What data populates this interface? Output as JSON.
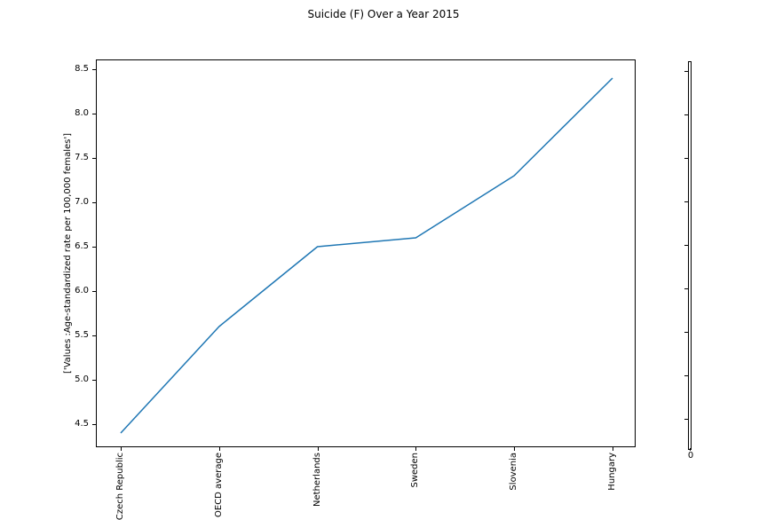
{
  "chart_data": {
    "type": "line",
    "title": "Suicide (F) Over a Year 2015",
    "categories": [
      "Czech Republic",
      "OECD average",
      "Netherlands",
      "Sweden",
      "Slovenia",
      "Hungary"
    ],
    "categories_as_shown": [
      "ech Republic",
      "ECD average",
      "Netherlands",
      "Sweden",
      "Slovenia",
      "Hungary"
    ],
    "values": [
      4.4,
      5.6,
      6.5,
      6.6,
      7.3,
      8.4
    ],
    "xlabel": "",
    "ylabel": "['Values :Age-standardized rate per 100,000 females']",
    "yticks": [
      4.5,
      5.0,
      5.5,
      6.0,
      6.5,
      7.0,
      7.5,
      8.0,
      8.5
    ],
    "ylim": [
      4.24,
      8.61
    ],
    "xtick_rotation": 90,
    "grid": false,
    "legend": false,
    "line_color": "#1f77b4"
  },
  "right_axis": {
    "xtick_label": "0",
    "ytick_count": 9,
    "ytick_labels": []
  },
  "colors": {
    "line": "#1f77b4",
    "text": "#000000",
    "spine": "#000000",
    "background": "#ffffff"
  }
}
